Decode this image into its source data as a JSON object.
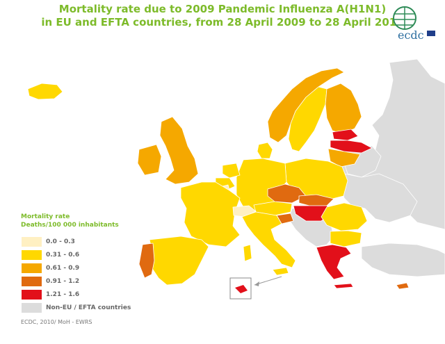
{
  "title": {
    "line1": "Mortality rate due to 2009 Pandemic Influenza A(H1N1)",
    "line2": "in EU and EFTA countries, from 28 April 2009 to 28 April 2010"
  },
  "logo": {
    "text": "ecdc",
    "icon": "globe-icon"
  },
  "legend": {
    "title_line1": "Mortality rate",
    "title_line2": "Deaths/100 000 inhabitants",
    "items": [
      {
        "label": "0.0 - 0.3",
        "color": "#fff0c2"
      },
      {
        "label": "0.31 - 0.6",
        "color": "#ffd800"
      },
      {
        "label": "0.61 - 0.9",
        "color": "#f5a800"
      },
      {
        "label": "0.91 - 1.2",
        "color": "#e06a10"
      },
      {
        "label": "1.21 - 1.6",
        "color": "#e2101a"
      },
      {
        "label": "Non-EU / EFTA countries",
        "color": "#dcdcdc"
      }
    ]
  },
  "source": "ECDC, 2010/ MoH - EWRS",
  "colors": {
    "title": "#7dbb2a",
    "sea": "#ffffff",
    "border": "#ffffff"
  }
}
